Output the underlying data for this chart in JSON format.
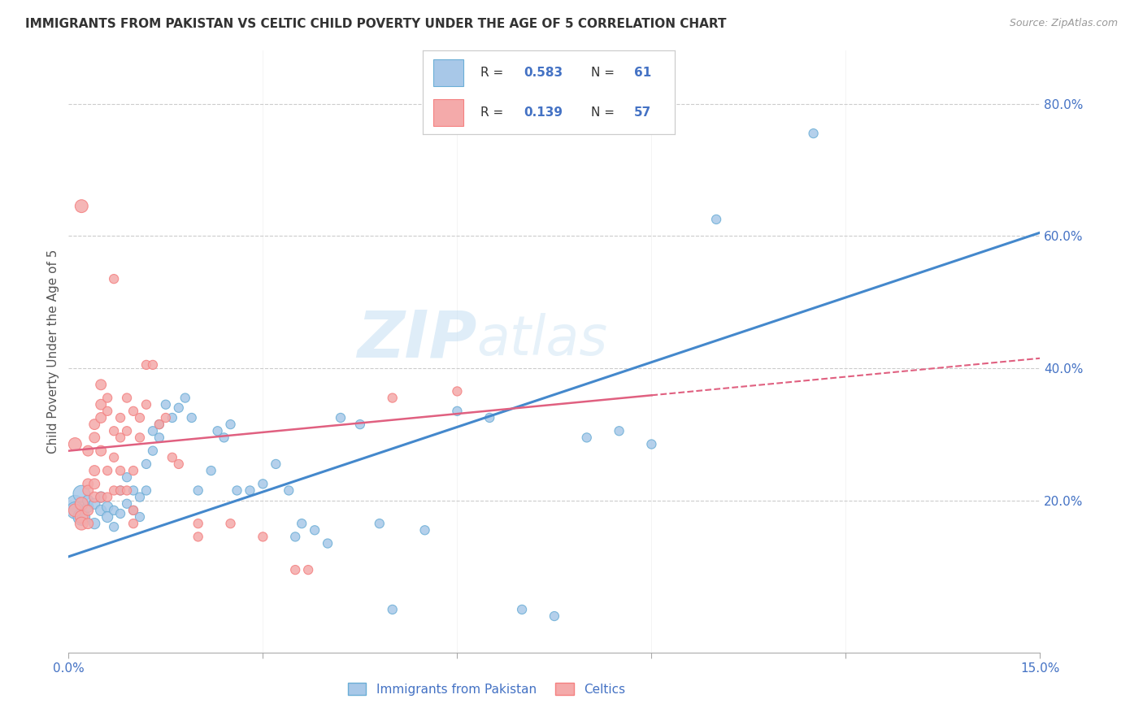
{
  "title": "IMMIGRANTS FROM PAKISTAN VS CELTIC CHILD POVERTY UNDER THE AGE OF 5 CORRELATION CHART",
  "source": "Source: ZipAtlas.com",
  "ylabel": "Child Poverty Under the Age of 5",
  "x_range": [
    0.0,
    0.15
  ],
  "y_range": [
    -0.03,
    0.88
  ],
  "legend_label_blue": "Immigrants from Pakistan",
  "legend_label_pink": "Celtics",
  "blue_color": "#a8c8e8",
  "pink_color": "#f4aaaa",
  "blue_edge": "#6baed6",
  "pink_edge": "#f48080",
  "blue_line_color": "#4488cc",
  "pink_line_color": "#e06080",
  "blue_scatter": [
    [
      0.001,
      0.195
    ],
    [
      0.001,
      0.185
    ],
    [
      0.002,
      0.21
    ],
    [
      0.002,
      0.175
    ],
    [
      0.003,
      0.19
    ],
    [
      0.003,
      0.2
    ],
    [
      0.004,
      0.195
    ],
    [
      0.004,
      0.165
    ],
    [
      0.005,
      0.185
    ],
    [
      0.005,
      0.205
    ],
    [
      0.006,
      0.19
    ],
    [
      0.006,
      0.175
    ],
    [
      0.007,
      0.185
    ],
    [
      0.007,
      0.16
    ],
    [
      0.008,
      0.215
    ],
    [
      0.008,
      0.18
    ],
    [
      0.009,
      0.235
    ],
    [
      0.009,
      0.195
    ],
    [
      0.01,
      0.215
    ],
    [
      0.01,
      0.185
    ],
    [
      0.011,
      0.205
    ],
    [
      0.011,
      0.175
    ],
    [
      0.012,
      0.255
    ],
    [
      0.012,
      0.215
    ],
    [
      0.013,
      0.275
    ],
    [
      0.013,
      0.305
    ],
    [
      0.014,
      0.295
    ],
    [
      0.014,
      0.315
    ],
    [
      0.015,
      0.345
    ],
    [
      0.016,
      0.325
    ],
    [
      0.017,
      0.34
    ],
    [
      0.018,
      0.355
    ],
    [
      0.019,
      0.325
    ],
    [
      0.02,
      0.215
    ],
    [
      0.022,
      0.245
    ],
    [
      0.023,
      0.305
    ],
    [
      0.024,
      0.295
    ],
    [
      0.025,
      0.315
    ],
    [
      0.026,
      0.215
    ],
    [
      0.028,
      0.215
    ],
    [
      0.03,
      0.225
    ],
    [
      0.032,
      0.255
    ],
    [
      0.034,
      0.215
    ],
    [
      0.035,
      0.145
    ],
    [
      0.036,
      0.165
    ],
    [
      0.038,
      0.155
    ],
    [
      0.04,
      0.135
    ],
    [
      0.042,
      0.325
    ],
    [
      0.045,
      0.315
    ],
    [
      0.048,
      0.165
    ],
    [
      0.05,
      0.035
    ],
    [
      0.055,
      0.155
    ],
    [
      0.06,
      0.335
    ],
    [
      0.065,
      0.325
    ],
    [
      0.07,
      0.035
    ],
    [
      0.075,
      0.025
    ],
    [
      0.08,
      0.295
    ],
    [
      0.085,
      0.305
    ],
    [
      0.09,
      0.285
    ],
    [
      0.1,
      0.625
    ],
    [
      0.115,
      0.755
    ]
  ],
  "pink_scatter": [
    [
      0.001,
      0.285
    ],
    [
      0.001,
      0.185
    ],
    [
      0.002,
      0.195
    ],
    [
      0.002,
      0.175
    ],
    [
      0.002,
      0.165
    ],
    [
      0.003,
      0.275
    ],
    [
      0.003,
      0.225
    ],
    [
      0.003,
      0.185
    ],
    [
      0.003,
      0.165
    ],
    [
      0.003,
      0.215
    ],
    [
      0.004,
      0.315
    ],
    [
      0.004,
      0.295
    ],
    [
      0.004,
      0.245
    ],
    [
      0.004,
      0.225
    ],
    [
      0.004,
      0.205
    ],
    [
      0.005,
      0.375
    ],
    [
      0.005,
      0.345
    ],
    [
      0.005,
      0.325
    ],
    [
      0.005,
      0.275
    ],
    [
      0.005,
      0.205
    ],
    [
      0.006,
      0.355
    ],
    [
      0.006,
      0.335
    ],
    [
      0.006,
      0.245
    ],
    [
      0.006,
      0.205
    ],
    [
      0.007,
      0.305
    ],
    [
      0.007,
      0.265
    ],
    [
      0.007,
      0.215
    ],
    [
      0.007,
      0.535
    ],
    [
      0.008,
      0.325
    ],
    [
      0.008,
      0.295
    ],
    [
      0.008,
      0.245
    ],
    [
      0.008,
      0.215
    ],
    [
      0.009,
      0.355
    ],
    [
      0.009,
      0.305
    ],
    [
      0.009,
      0.215
    ],
    [
      0.01,
      0.335
    ],
    [
      0.01,
      0.245
    ],
    [
      0.01,
      0.185
    ],
    [
      0.01,
      0.165
    ],
    [
      0.011,
      0.325
    ],
    [
      0.011,
      0.295
    ],
    [
      0.012,
      0.405
    ],
    [
      0.012,
      0.345
    ],
    [
      0.013,
      0.405
    ],
    [
      0.014,
      0.315
    ],
    [
      0.015,
      0.325
    ],
    [
      0.016,
      0.265
    ],
    [
      0.017,
      0.255
    ],
    [
      0.02,
      0.165
    ],
    [
      0.02,
      0.145
    ],
    [
      0.025,
      0.165
    ],
    [
      0.03,
      0.145
    ],
    [
      0.035,
      0.095
    ],
    [
      0.037,
      0.095
    ],
    [
      0.05,
      0.355
    ],
    [
      0.06,
      0.365
    ],
    [
      0.002,
      0.645
    ]
  ],
  "blue_line": [
    [
      0.0,
      0.115
    ],
    [
      0.15,
      0.605
    ]
  ],
  "pink_line": [
    [
      0.0,
      0.275
    ],
    [
      0.15,
      0.415
    ]
  ],
  "pink_dash_line": [
    [
      0.08,
      0.38
    ],
    [
      0.15,
      0.425
    ]
  ],
  "watermark_zip": "ZIP",
  "watermark_atlas": "atlas",
  "bg_color": "#ffffff",
  "grid_color": "#cccccc",
  "axis_color": "#4472c4",
  "title_color": "#333333",
  "legend_r1": "R = 0.583",
  "legend_n1": "N = 61",
  "legend_r2": "R = 0.139",
  "legend_n2": "N = 57"
}
